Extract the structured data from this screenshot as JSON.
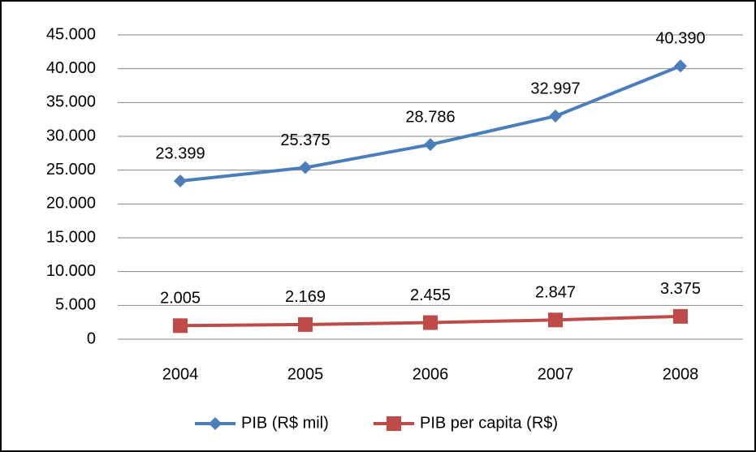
{
  "chart_data": {
    "type": "line",
    "categories": [
      "2004",
      "2005",
      "2006",
      "2007",
      "2008"
    ],
    "series": [
      {
        "name": "PIB (R$ mil)",
        "color": "#4a7ebb",
        "marker": "diamond",
        "values": [
          23399,
          25375,
          28786,
          32997,
          40390
        ],
        "value_labels": [
          "23.399",
          "25.375",
          "28.786",
          "32.997",
          "40.390"
        ]
      },
      {
        "name": "PIB per capita (R$)",
        "color": "#be4b48",
        "marker": "square",
        "values": [
          2005,
          2169,
          2455,
          2847,
          3375
        ],
        "value_labels": [
          "2.005",
          "2.169",
          "2.455",
          "2.847",
          "3.375"
        ]
      }
    ],
    "ylim": [
      0,
      45000
    ],
    "yticks": [
      0,
      {
        "value": 5000,
        "label": "5.000"
      },
      {
        "value": 10000,
        "label": "10.000"
      },
      {
        "value": 15000,
        "label": "15.000"
      },
      {
        "value": 20000,
        "label": "20.000"
      },
      {
        "value": 25000,
        "label": "25.000"
      },
      {
        "value": 30000,
        "label": "30.000"
      },
      {
        "value": 35000,
        "label": "35.000"
      },
      {
        "value": 40000,
        "label": "40.000"
      },
      {
        "value": 45000,
        "label": "45.000"
      }
    ],
    "grid": true,
    "legend": "bottom"
  }
}
